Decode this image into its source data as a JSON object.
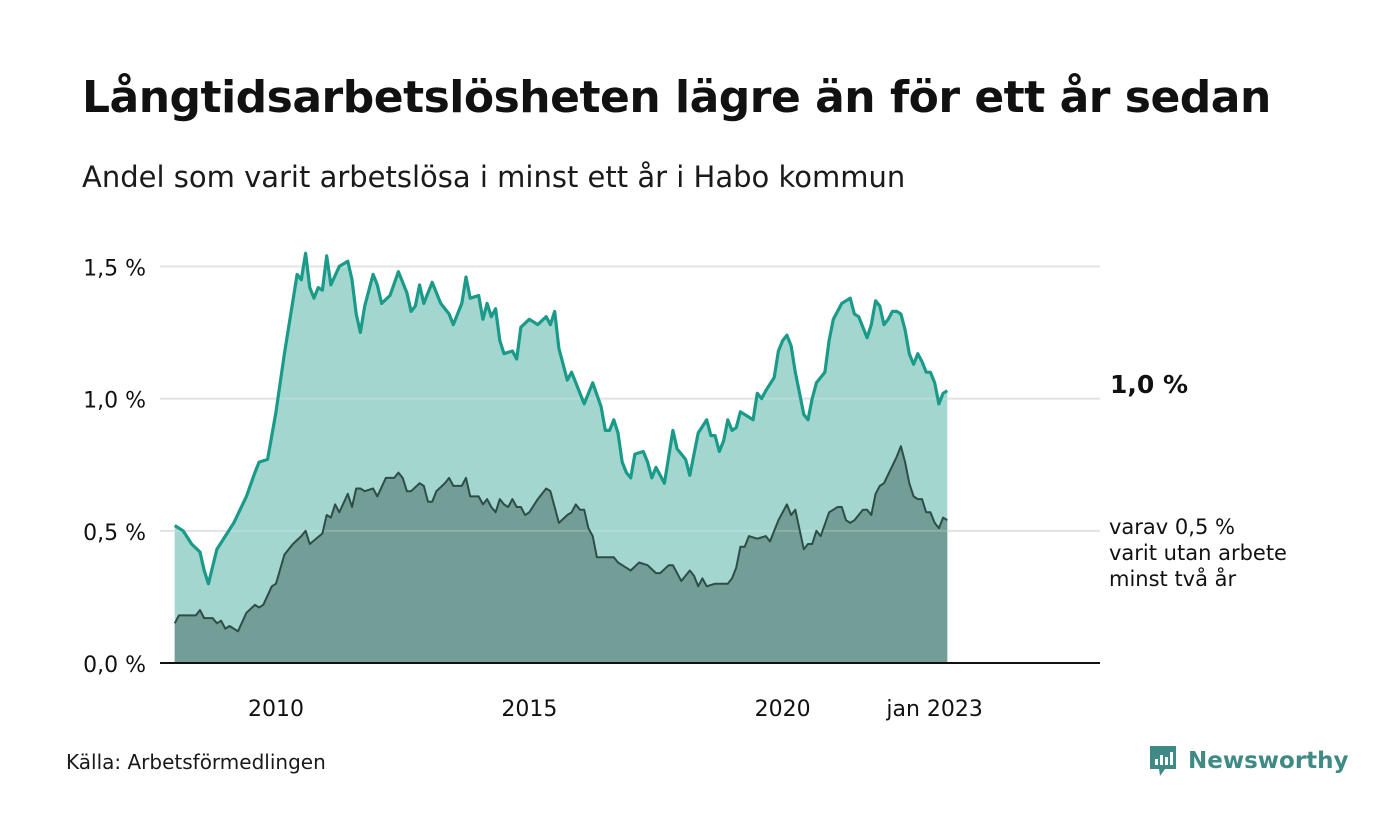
{
  "title": "Långtidsarbetslösheten lägre än för ett år sedan",
  "subtitle": "Andel som varit arbetslösa i minst ett år i Habo kommun",
  "source": "Källa: Arbetsförmedlingen",
  "logo": {
    "name": "Newsworthy",
    "icon": "bar-chart-icon"
  },
  "annotations": {
    "main_value": "1,0 %",
    "sub_value": "varav 0,5 %\nvarit utan arbete\nminst två år"
  },
  "colors": {
    "total_line": "#1a9a88",
    "total_fill": "#a3d6cf",
    "sub_line": "#2e4d48",
    "sub_fill": "#729e97",
    "grid": "#dddddd",
    "brand": "#3f8a84"
  },
  "chart_data": {
    "type": "area",
    "title": "Långtidsarbetslösheten lägre än för ett år sedan",
    "subtitle": "Andel som varit arbetslösa i minst ett år i Habo kommun",
    "xlabel": "",
    "ylabel": "",
    "x_start": "2008-01",
    "x_end": "2023-01",
    "x_ticks": [
      {
        "label": "2010",
        "x": "2010-01"
      },
      {
        "label": "2015",
        "x": "2015-01"
      },
      {
        "label": "2020",
        "x": "2020-01"
      },
      {
        "label": "jan 2023",
        "x": "2023-01"
      }
    ],
    "ylim": [
      0,
      1.6
    ],
    "y_ticks": [
      {
        "label": "0,0 %",
        "value": 0
      },
      {
        "label": "0,5 %",
        "value": 0.5
      },
      {
        "label": "1,0 %",
        "value": 1.0
      },
      {
        "label": "1,5 %",
        "value": 1.5
      }
    ],
    "grid": true,
    "series": [
      {
        "name": "",
        "points": [
          [
            "2008-01",
            0.52
          ],
          [
            "2008-03",
            0.5
          ],
          [
            "2008-05",
            0.45
          ],
          [
            "2008-07",
            0.42
          ],
          [
            "2008-08",
            0.35
          ],
          [
            "2008-09",
            0.3
          ],
          [
            "2008-11",
            0.43
          ],
          [
            "2009-01",
            0.48
          ],
          [
            "2009-03",
            0.53
          ],
          [
            "2009-06",
            0.63
          ],
          [
            "2009-08",
            0.72
          ],
          [
            "2009-09",
            0.76
          ],
          [
            "2009-11",
            0.77
          ],
          [
            "2010-01",
            0.95
          ],
          [
            "2010-03",
            1.17
          ],
          [
            "2010-05",
            1.37
          ],
          [
            "2010-06",
            1.47
          ],
          [
            "2010-07",
            1.45
          ],
          [
            "2010-08",
            1.55
          ],
          [
            "2010-09",
            1.42
          ],
          [
            "2010-10",
            1.38
          ],
          [
            "2010-11",
            1.42
          ],
          [
            "2010-12",
            1.41
          ],
          [
            "2011-01",
            1.54
          ],
          [
            "2011-02",
            1.43
          ],
          [
            "2011-04",
            1.5
          ],
          [
            "2011-06",
            1.52
          ],
          [
            "2011-07",
            1.45
          ],
          [
            "2011-08",
            1.32
          ],
          [
            "2011-09",
            1.25
          ],
          [
            "2011-10",
            1.35
          ],
          [
            "2011-12",
            1.47
          ],
          [
            "2012-01",
            1.43
          ],
          [
            "2012-02",
            1.36
          ],
          [
            "2012-04",
            1.39
          ],
          [
            "2012-06",
            1.48
          ],
          [
            "2012-08",
            1.4
          ],
          [
            "2012-09",
            1.33
          ],
          [
            "2012-10",
            1.35
          ],
          [
            "2012-11",
            1.43
          ],
          [
            "2012-12",
            1.36
          ],
          [
            "2013-02",
            1.44
          ],
          [
            "2013-04",
            1.36
          ],
          [
            "2013-06",
            1.32
          ],
          [
            "2013-07",
            1.28
          ],
          [
            "2013-09",
            1.36
          ],
          [
            "2013-10",
            1.46
          ],
          [
            "2013-11",
            1.38
          ],
          [
            "2014-01",
            1.39
          ],
          [
            "2014-02",
            1.3
          ],
          [
            "2014-03",
            1.36
          ],
          [
            "2014-04",
            1.31
          ],
          [
            "2014-05",
            1.34
          ],
          [
            "2014-06",
            1.22
          ],
          [
            "2014-07",
            1.17
          ],
          [
            "2014-09",
            1.18
          ],
          [
            "2014-10",
            1.15
          ],
          [
            "2014-11",
            1.27
          ],
          [
            "2015-01",
            1.3
          ],
          [
            "2015-03",
            1.28
          ],
          [
            "2015-05",
            1.31
          ],
          [
            "2015-06",
            1.28
          ],
          [
            "2015-07",
            1.33
          ],
          [
            "2015-08",
            1.19
          ],
          [
            "2015-10",
            1.07
          ],
          [
            "2015-11",
            1.1
          ],
          [
            "2016-02",
            0.98
          ],
          [
            "2016-04",
            1.06
          ],
          [
            "2016-06",
            0.97
          ],
          [
            "2016-07",
            0.88
          ],
          [
            "2016-08",
            0.88
          ],
          [
            "2016-09",
            0.92
          ],
          [
            "2016-10",
            0.87
          ],
          [
            "2016-11",
            0.76
          ],
          [
            "2016-12",
            0.72
          ],
          [
            "2017-01",
            0.7
          ],
          [
            "2017-02",
            0.79
          ],
          [
            "2017-04",
            0.8
          ],
          [
            "2017-05",
            0.76
          ],
          [
            "2017-06",
            0.7
          ],
          [
            "2017-07",
            0.74
          ],
          [
            "2017-09",
            0.68
          ],
          [
            "2017-10",
            0.78
          ],
          [
            "2017-11",
            0.88
          ],
          [
            "2017-12",
            0.81
          ],
          [
            "2018-02",
            0.77
          ],
          [
            "2018-03",
            0.71
          ],
          [
            "2018-05",
            0.87
          ],
          [
            "2018-07",
            0.92
          ],
          [
            "2018-08",
            0.86
          ],
          [
            "2018-09",
            0.86
          ],
          [
            "2018-10",
            0.8
          ],
          [
            "2018-11",
            0.84
          ],
          [
            "2018-12",
            0.92
          ],
          [
            "2019-01",
            0.88
          ],
          [
            "2019-02",
            0.89
          ],
          [
            "2019-03",
            0.95
          ],
          [
            "2019-05",
            0.93
          ],
          [
            "2019-06",
            0.92
          ],
          [
            "2019-07",
            1.02
          ],
          [
            "2019-08",
            1.0
          ],
          [
            "2019-09",
            1.03
          ],
          [
            "2019-11",
            1.08
          ],
          [
            "2019-12",
            1.18
          ],
          [
            "2020-01",
            1.22
          ],
          [
            "2020-02",
            1.24
          ],
          [
            "2020-03",
            1.2
          ],
          [
            "2020-04",
            1.1
          ],
          [
            "2020-05",
            1.02
          ],
          [
            "2020-06",
            0.94
          ],
          [
            "2020-07",
            0.92
          ],
          [
            "2020-08",
            1.0
          ],
          [
            "2020-09",
            1.06
          ],
          [
            "2020-11",
            1.1
          ],
          [
            "2020-12",
            1.22
          ],
          [
            "2021-01",
            1.3
          ],
          [
            "2021-03",
            1.36
          ],
          [
            "2021-05",
            1.38
          ],
          [
            "2021-06",
            1.32
          ],
          [
            "2021-07",
            1.31
          ],
          [
            "2021-09",
            1.23
          ],
          [
            "2021-10",
            1.28
          ],
          [
            "2021-11",
            1.37
          ],
          [
            "2021-12",
            1.35
          ],
          [
            "2022-01",
            1.28
          ],
          [
            "2022-02",
            1.3
          ],
          [
            "2022-03",
            1.33
          ],
          [
            "2022-04",
            1.33
          ],
          [
            "2022-05",
            1.32
          ],
          [
            "2022-06",
            1.26
          ],
          [
            "2022-07",
            1.17
          ],
          [
            "2022-08",
            1.13
          ],
          [
            "2022-09",
            1.17
          ],
          [
            "2022-10",
            1.14
          ],
          [
            "2022-11",
            1.1
          ],
          [
            "2022-12",
            1.1
          ],
          [
            "2023-01",
            1.06
          ],
          [
            "2023-02",
            0.98
          ],
          [
            "2023-03",
            1.02
          ],
          [
            "2023-04",
            1.03
          ]
        ]
      },
      {
        "name": "",
        "points": [
          [
            "2008-01",
            0.15
          ],
          [
            "2008-02",
            0.18
          ],
          [
            "2008-06",
            0.18
          ],
          [
            "2008-07",
            0.2
          ],
          [
            "2008-08",
            0.17
          ],
          [
            "2008-10",
            0.17
          ],
          [
            "2008-11",
            0.15
          ],
          [
            "2008-12",
            0.16
          ],
          [
            "2009-01",
            0.13
          ],
          [
            "2009-02",
            0.14
          ],
          [
            "2009-04",
            0.12
          ],
          [
            "2009-06",
            0.19
          ],
          [
            "2009-08",
            0.22
          ],
          [
            "2009-09",
            0.21
          ],
          [
            "2009-10",
            0.22
          ],
          [
            "2009-12",
            0.29
          ],
          [
            "2010-01",
            0.3
          ],
          [
            "2010-03",
            0.41
          ],
          [
            "2010-05",
            0.45
          ],
          [
            "2010-07",
            0.48
          ],
          [
            "2010-08",
            0.5
          ],
          [
            "2010-09",
            0.45
          ],
          [
            "2010-12",
            0.49
          ],
          [
            "2011-01",
            0.56
          ],
          [
            "2011-02",
            0.55
          ],
          [
            "2011-03",
            0.6
          ],
          [
            "2011-04",
            0.57
          ],
          [
            "2011-06",
            0.64
          ],
          [
            "2011-07",
            0.59
          ],
          [
            "2011-08",
            0.66
          ],
          [
            "2011-09",
            0.66
          ],
          [
            "2011-10",
            0.65
          ],
          [
            "2011-12",
            0.66
          ],
          [
            "2012-01",
            0.63
          ],
          [
            "2012-03",
            0.7
          ],
          [
            "2012-05",
            0.7
          ],
          [
            "2012-06",
            0.72
          ],
          [
            "2012-07",
            0.7
          ],
          [
            "2012-08",
            0.65
          ],
          [
            "2012-09",
            0.65
          ],
          [
            "2012-11",
            0.68
          ],
          [
            "2012-12",
            0.67
          ],
          [
            "2013-01",
            0.61
          ],
          [
            "2013-02",
            0.61
          ],
          [
            "2013-03",
            0.65
          ],
          [
            "2013-05",
            0.68
          ],
          [
            "2013-06",
            0.7
          ],
          [
            "2013-07",
            0.67
          ],
          [
            "2013-09",
            0.67
          ],
          [
            "2013-10",
            0.7
          ],
          [
            "2013-11",
            0.63
          ],
          [
            "2014-01",
            0.63
          ],
          [
            "2014-02",
            0.6
          ],
          [
            "2014-03",
            0.62
          ],
          [
            "2014-04",
            0.59
          ],
          [
            "2014-05",
            0.57
          ],
          [
            "2014-06",
            0.62
          ],
          [
            "2014-07",
            0.6
          ],
          [
            "2014-08",
            0.59
          ],
          [
            "2014-09",
            0.62
          ],
          [
            "2014-10",
            0.59
          ],
          [
            "2014-11",
            0.59
          ],
          [
            "2014-12",
            0.56
          ],
          [
            "2015-01",
            0.57
          ],
          [
            "2015-03",
            0.62
          ],
          [
            "2015-05",
            0.66
          ],
          [
            "2015-06",
            0.65
          ],
          [
            "2015-08",
            0.53
          ],
          [
            "2015-10",
            0.56
          ],
          [
            "2015-11",
            0.57
          ],
          [
            "2015-12",
            0.6
          ],
          [
            "2016-01",
            0.58
          ],
          [
            "2016-02",
            0.58
          ],
          [
            "2016-03",
            0.51
          ],
          [
            "2016-04",
            0.48
          ],
          [
            "2016-05",
            0.4
          ],
          [
            "2016-09",
            0.4
          ],
          [
            "2016-10",
            0.38
          ],
          [
            "2016-12",
            0.36
          ],
          [
            "2017-01",
            0.35
          ],
          [
            "2017-03",
            0.38
          ],
          [
            "2017-05",
            0.37
          ],
          [
            "2017-07",
            0.34
          ],
          [
            "2017-08",
            0.34
          ],
          [
            "2017-10",
            0.37
          ],
          [
            "2017-11",
            0.37
          ],
          [
            "2018-01",
            0.31
          ],
          [
            "2018-03",
            0.35
          ],
          [
            "2018-04",
            0.33
          ],
          [
            "2018-05",
            0.29
          ],
          [
            "2018-06",
            0.32
          ],
          [
            "2018-07",
            0.29
          ],
          [
            "2018-09",
            0.3
          ],
          [
            "2018-12",
            0.3
          ],
          [
            "2019-01",
            0.32
          ],
          [
            "2019-02",
            0.36
          ],
          [
            "2019-03",
            0.44
          ],
          [
            "2019-04",
            0.44
          ],
          [
            "2019-05",
            0.48
          ],
          [
            "2019-07",
            0.47
          ],
          [
            "2019-09",
            0.48
          ],
          [
            "2019-10",
            0.46
          ],
          [
            "2019-12",
            0.54
          ],
          [
            "2020-02",
            0.6
          ],
          [
            "2020-03",
            0.56
          ],
          [
            "2020-04",
            0.58
          ],
          [
            "2020-06",
            0.43
          ],
          [
            "2020-07",
            0.45
          ],
          [
            "2020-08",
            0.45
          ],
          [
            "2020-09",
            0.5
          ],
          [
            "2020-10",
            0.48
          ],
          [
            "2020-12",
            0.57
          ],
          [
            "2021-01",
            0.58
          ],
          [
            "2021-02",
            0.59
          ],
          [
            "2021-03",
            0.59
          ],
          [
            "2021-04",
            0.54
          ],
          [
            "2021-05",
            0.53
          ],
          [
            "2021-06",
            0.54
          ],
          [
            "2021-08",
            0.58
          ],
          [
            "2021-09",
            0.58
          ],
          [
            "2021-10",
            0.56
          ],
          [
            "2021-11",
            0.64
          ],
          [
            "2021-12",
            0.67
          ],
          [
            "2022-01",
            0.68
          ],
          [
            "2022-04",
            0.78
          ],
          [
            "2022-05",
            0.82
          ],
          [
            "2022-06",
            0.76
          ],
          [
            "2022-07",
            0.68
          ],
          [
            "2022-08",
            0.63
          ],
          [
            "2022-09",
            0.62
          ],
          [
            "2022-10",
            0.62
          ],
          [
            "2022-11",
            0.57
          ],
          [
            "2022-12",
            0.57
          ],
          [
            "2023-01",
            0.53
          ],
          [
            "2023-02",
            0.51
          ],
          [
            "2023-03",
            0.55
          ],
          [
            "2023-04",
            0.54
          ]
        ]
      }
    ]
  }
}
